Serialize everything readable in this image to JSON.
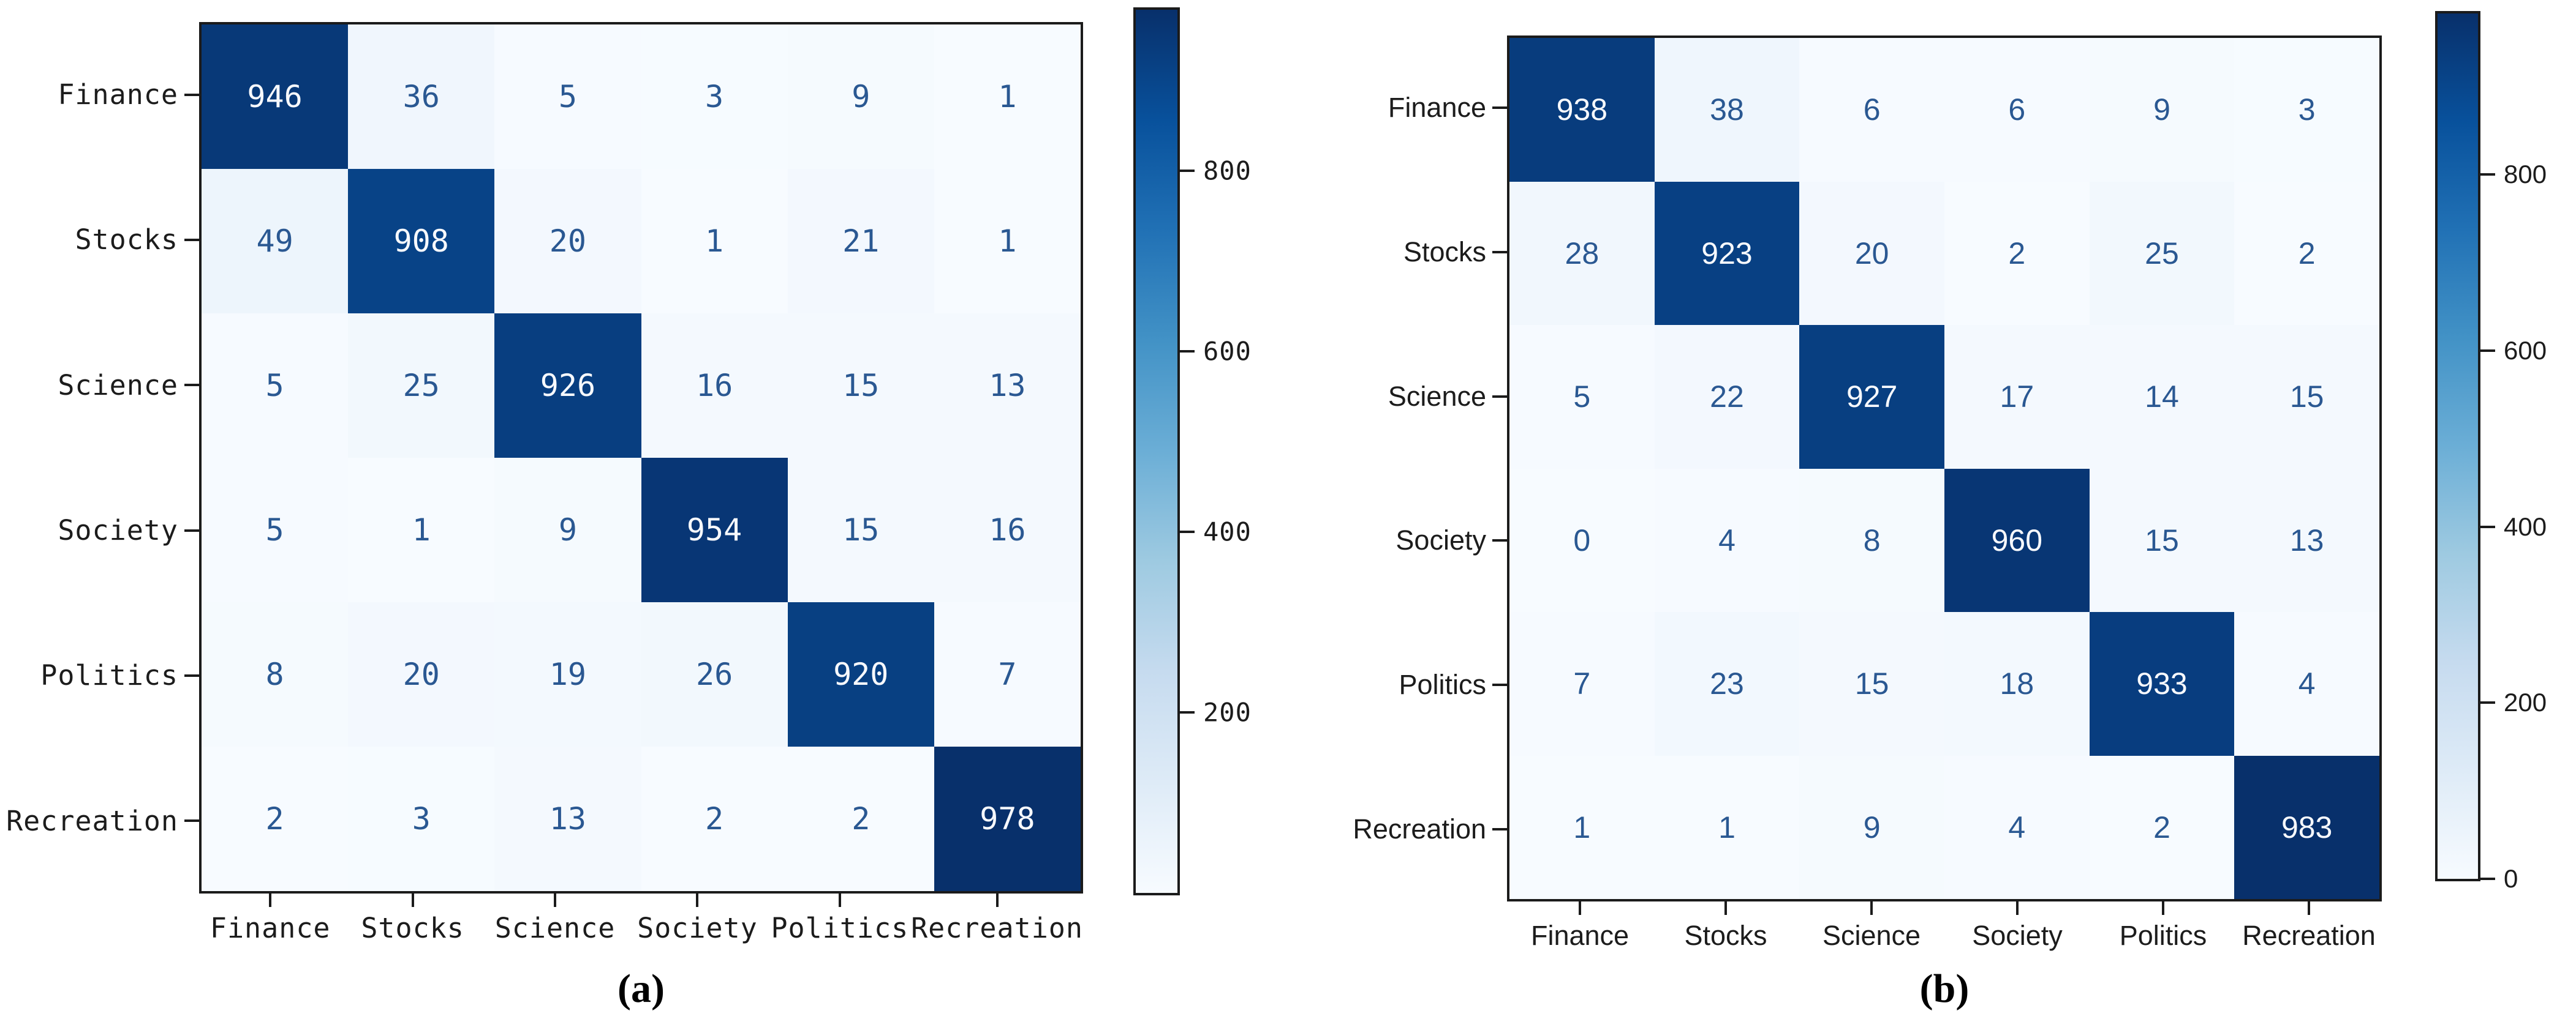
{
  "figure": {
    "colors": {
      "background": "#ffffff",
      "spine": "#1b1b1b",
      "axis_text": "#1c1c1c",
      "cell_text_dark": "#2a5892",
      "cell_text_light": "#f7f9fd",
      "colormap_anchors": [
        "#f7fbff",
        "#deebf7",
        "#c6dbef",
        "#9ecae1",
        "#6baed6",
        "#4292c6",
        "#2171b5",
        "#08519c",
        "#08306b"
      ]
    },
    "panels": [
      {
        "id": "a",
        "caption": "(a)",
        "row_labels": [
          "Finance",
          "Stocks",
          "Science",
          "Society",
          "Politics",
          "Recreation"
        ],
        "col_labels": [
          "Finance",
          "Stocks",
          "Science",
          "Society",
          "Politics",
          "Recreation"
        ],
        "matrix": [
          [
            946,
            36,
            5,
            3,
            9,
            1
          ],
          [
            49,
            908,
            20,
            1,
            21,
            1
          ],
          [
            5,
            25,
            926,
            16,
            15,
            13
          ],
          [
            5,
            1,
            9,
            954,
            15,
            16
          ],
          [
            8,
            20,
            19,
            26,
            920,
            7
          ],
          [
            2,
            3,
            13,
            2,
            2,
            978
          ]
        ],
        "colorbar": {
          "ticks": [
            800,
            600,
            400,
            200
          ],
          "vmin": 0,
          "vmax": 978
        }
      },
      {
        "id": "b",
        "caption": "(b)",
        "row_labels": [
          "Finance",
          "Stocks",
          "Science",
          "Society",
          "Politics",
          "Recreation"
        ],
        "col_labels": [
          "Finance",
          "Stocks",
          "Science",
          "Society",
          "Politics",
          "Recreation"
        ],
        "matrix": [
          [
            938,
            38,
            6,
            6,
            9,
            3
          ],
          [
            28,
            923,
            20,
            2,
            25,
            2
          ],
          [
            5,
            22,
            927,
            17,
            14,
            15
          ],
          [
            0,
            4,
            8,
            960,
            15,
            13
          ],
          [
            7,
            23,
            15,
            18,
            933,
            4
          ],
          [
            1,
            1,
            9,
            4,
            2,
            983
          ]
        ],
        "colorbar": {
          "ticks": [
            800,
            600,
            400,
            200,
            0
          ],
          "vmin": 0,
          "vmax": 983
        }
      }
    ]
  },
  "chart_data": [
    {
      "type": "heatmap",
      "title": "(a)",
      "x_categories": [
        "Finance",
        "Stocks",
        "Science",
        "Society",
        "Politics",
        "Recreation"
      ],
      "y_categories": [
        "Finance",
        "Stocks",
        "Science",
        "Society",
        "Politics",
        "Recreation"
      ],
      "values": [
        [
          946,
          36,
          5,
          3,
          9,
          1
        ],
        [
          49,
          908,
          20,
          1,
          21,
          1
        ],
        [
          5,
          25,
          926,
          16,
          15,
          13
        ],
        [
          5,
          1,
          9,
          954,
          15,
          16
        ],
        [
          8,
          20,
          19,
          26,
          920,
          7
        ],
        [
          2,
          3,
          13,
          2,
          2,
          978
        ]
      ],
      "colormap": "Blues",
      "colorbar_ticks": [
        800,
        600,
        400,
        200
      ],
      "vmin": 0,
      "vmax": 978,
      "legend_position": "right-colorbar",
      "grid": false
    },
    {
      "type": "heatmap",
      "title": "(b)",
      "x_categories": [
        "Finance",
        "Stocks",
        "Science",
        "Society",
        "Politics",
        "Recreation"
      ],
      "y_categories": [
        "Finance",
        "Stocks",
        "Science",
        "Society",
        "Politics",
        "Recreation"
      ],
      "values": [
        [
          938,
          38,
          6,
          6,
          9,
          3
        ],
        [
          28,
          923,
          20,
          2,
          25,
          2
        ],
        [
          5,
          22,
          927,
          17,
          14,
          15
        ],
        [
          0,
          4,
          8,
          960,
          15,
          13
        ],
        [
          7,
          23,
          15,
          18,
          933,
          4
        ],
        [
          1,
          1,
          9,
          4,
          2,
          983
        ]
      ],
      "colormap": "Blues",
      "colorbar_ticks": [
        800,
        600,
        400,
        200,
        0
      ],
      "vmin": 0,
      "vmax": 983,
      "legend_position": "right-colorbar",
      "grid": false
    }
  ]
}
